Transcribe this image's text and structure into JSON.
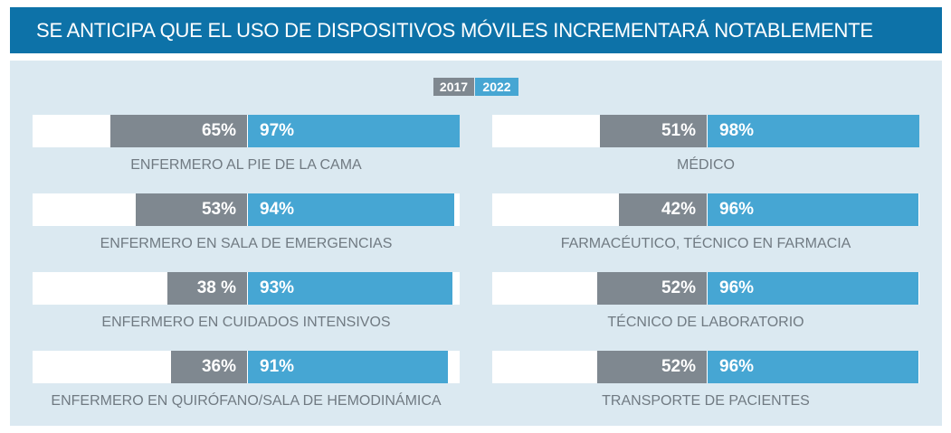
{
  "header": {
    "title": "SE ANTICIPA QUE EL USO DE DISPOSITIVOS MÓVILES INCREMENTARÁ NOTABLEMENTE"
  },
  "legend": {
    "label_2017": "2017",
    "label_2022": "2022"
  },
  "colors": {
    "header": "#0d72a8",
    "panel": "#dbe9f1",
    "series_2017": "#7f8890",
    "series_2022": "#46a6d3",
    "label_text": "#707a82"
  },
  "chart_data": {
    "type": "bar",
    "title": "SE ANTICIPA QUE EL USO DE DISPOSITIVOS MÓVILES INCREMENTARÁ NOTABLEMENTE",
    "unit": "%",
    "legend_position": "top-center",
    "categories": [
      "ENFERMERO AL PIE DE LA CAMA",
      "MÉDICO",
      "ENFERMERO EN SALA DE EMERGENCIAS",
      "FARMACÉUTICO, TÉCNICO EN FARMACIA",
      "ENFERMERO EN CUIDADOS INTENSIVOS",
      "TÉCNICO DE LABORATORIO",
      "ENFERMERO EN QUIRÓFANO/SALA DE HEMODINÁMICA",
      "TRANSPORTE DE PACIENTES"
    ],
    "series": [
      {
        "name": "2017",
        "values": [
          65,
          51,
          53,
          42,
          38,
          52,
          36,
          52
        ],
        "labels": [
          "65%",
          "51%",
          "53%",
          "42%",
          "38 %",
          "52%",
          "36%",
          "52%"
        ]
      },
      {
        "name": "2022",
        "values": [
          97,
          98,
          94,
          96,
          93,
          96,
          91,
          96
        ],
        "labels": [
          "97%",
          "98%",
          "94%",
          "96%",
          "93%",
          "96%",
          "91%",
          "96%"
        ]
      }
    ]
  }
}
